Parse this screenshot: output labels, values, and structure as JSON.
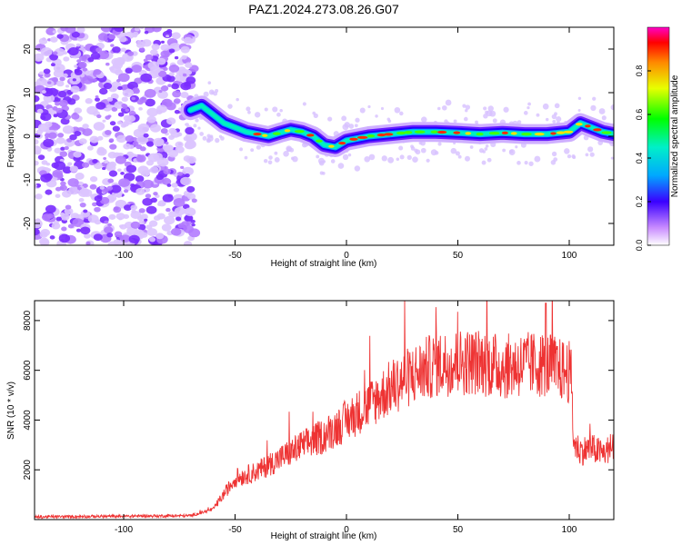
{
  "title": "PAZ1.2024.273.08.26.G07",
  "chart_data": [
    {
      "type": "heatmap",
      "xlabel": "Height of straight line (km)",
      "ylabel": "Frequency (Hz)",
      "xlim": [
        -140,
        120
      ],
      "ylim": [
        -25,
        25
      ],
      "xticks": [
        -100,
        -50,
        0,
        50,
        100
      ],
      "yticks": [
        -20,
        -10,
        0,
        10,
        20
      ],
      "colorbar": {
        "label": "Normalized spectral amplitude",
        "range": [
          0,
          1
        ],
        "ticks": [
          0.0,
          0.2,
          0.4,
          0.6,
          0.8
        ],
        "tick_labels": [
          "0.0",
          "0.2",
          "0.4",
          "0.6",
          "0.8"
        ]
      },
      "ridge": {
        "x": [
          -70,
          -65,
          -60,
          -55,
          -50,
          -45,
          -40,
          -35,
          -30,
          -25,
          -20,
          -15,
          -10,
          -5,
          0,
          10,
          20,
          30,
          40,
          50,
          60,
          70,
          80,
          90,
          100,
          105,
          110,
          115,
          120
        ],
        "y": [
          6,
          7,
          5,
          3,
          2,
          1,
          0.5,
          0,
          0.8,
          1.5,
          1,
          0,
          -2,
          -2.5,
          -1,
          0,
          0.5,
          1,
          1,
          0.8,
          0.5,
          0.8,
          0.5,
          0.5,
          1,
          3,
          2,
          1,
          0.5
        ]
      },
      "noise_region": {
        "x": [
          -140,
          -70
        ],
        "y": [
          -25,
          25
        ]
      }
    },
    {
      "type": "line",
      "xlabel": "Height of straight line (km)",
      "ylabel": "SNR (10 * v/v)",
      "xlim": [
        -140,
        120
      ],
      "ylim": [
        0,
        8800
      ],
      "xticks": [
        -100,
        -50,
        0,
        50,
        100
      ],
      "yticks": [
        2000,
        4000,
        6000,
        8000
      ],
      "color": "#ee3333",
      "envelope": {
        "x": [
          -140,
          -70,
          -60,
          -55,
          -50,
          -40,
          -30,
          -20,
          -10,
          0,
          10,
          20,
          30,
          40,
          50,
          60,
          70,
          80,
          90,
          95,
          100,
          101,
          102,
          105,
          110,
          115,
          120
        ],
        "y": [
          100,
          150,
          400,
          1000,
          1600,
          1900,
          2400,
          2900,
          3300,
          3900,
          4500,
          5200,
          5700,
          6100,
          6200,
          6200,
          6000,
          6100,
          6100,
          5900,
          5800,
          5500,
          3000,
          2700,
          2800,
          2600,
          2900
        ]
      },
      "peak": {
        "x": 89.5,
        "y": 8700
      }
    }
  ]
}
